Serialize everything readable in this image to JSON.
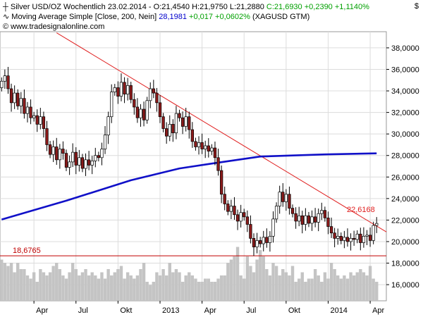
{
  "header": {
    "line1": {
      "legend_icon": "candlestick-icon",
      "name": "Silver USD/OZ Wochentlich",
      "date": "23.02.2014",
      "ohlc": "O:21,4540 H:21,9750 L:21,2880",
      "close": "C:21,6930",
      "change": "+0,2390 +1,1140%"
    },
    "line2": {
      "legend_icon": "wave-icon",
      "name": "Moving Average Simple [Close, 200, Nein]",
      "value": "28,1981",
      "change": "+0,017 +0,0602%",
      "ticker": "(XAGUSD GTM)"
    },
    "line3": {
      "legend_icon": "copyright-icon",
      "text": "www.tradesignalonline.com"
    },
    "currency": "$"
  },
  "colors": {
    "up_candle": "#ffffff",
    "down_candle": "#8b1a1a",
    "ma_line": "#1010c8",
    "trend_line": "#e02020",
    "support_line": "#c00000",
    "volume": "#c4c4c4",
    "grid": "#dcdcdc",
    "positive": "#00a000"
  },
  "chart_data": {
    "type": "candlestick",
    "y_axis": {
      "ticks": [
        "16,0000",
        "18,0000",
        "20,0000",
        "22,0000",
        "24,0000",
        "26,0000",
        "28,0000",
        "30,0000",
        "32,0000",
        "34,0000",
        "36,0000",
        "38,0000"
      ],
      "range": [
        14.5,
        39.5
      ]
    },
    "x_axis": {
      "ticks": [
        {
          "label": "Apr",
          "week": 10
        },
        {
          "label": "Jul",
          "week": 23
        },
        {
          "label": "Okt",
          "week": 36
        },
        {
          "label": "2013",
          "week": 49
        },
        {
          "label": "Apr",
          "week": 62
        },
        {
          "label": "Jul",
          "week": 75
        },
        {
          "label": "Okt",
          "week": 88
        },
        {
          "label": "2014",
          "week": 101
        },
        {
          "label": "Apr",
          "week": 114
        }
      ],
      "range": [
        -0.5,
        119
      ]
    },
    "closes": [
      34.9,
      35.4,
      34.2,
      32.9,
      33.8,
      32.6,
      33.3,
      31.9,
      32.5,
      31.5,
      31.7,
      30.9,
      31.6,
      30.5,
      29.0,
      28.1,
      28.8,
      27.6,
      28.6,
      28.2,
      26.9,
      27.4,
      28.3,
      27.1,
      27.8,
      26.8,
      27.6,
      27.1,
      27.5,
      28.0,
      27.8,
      28.6,
      29.9,
      31.6,
      33.9,
      34.3,
      33.5,
      34.8,
      33.7,
      34.5,
      33.2,
      32.5,
      31.5,
      32.3,
      31.3,
      33.1,
      34.2,
      33.8,
      32.9,
      31.6,
      30.5,
      29.8,
      30.9,
      30.1,
      31.9,
      31.5,
      30.7,
      31.6,
      30.4,
      29.3,
      28.8,
      29.2,
      28.6,
      28.9,
      28.4,
      28.7,
      27.8,
      26.6,
      24.4,
      23.5,
      22.8,
      23.3,
      22.5,
      21.9,
      22.7,
      22.3,
      21.6,
      20.3,
      19.5,
      20.1,
      19.8,
      20.4,
      19.9,
      20.5,
      22.1,
      23.3,
      24.6,
      23.7,
      24.4,
      23.1,
      22.6,
      21.9,
      22.4,
      21.6,
      22.4,
      21.7,
      22.3,
      21.8,
      22.6,
      22.9,
      22.2,
      21.4,
      20.8,
      20.3,
      20.5,
      20.1,
      20.4,
      20.0,
      20.3,
      20.2,
      20.7,
      19.9,
      20.5,
      20.6,
      20.1,
      21.5,
      21.69
    ],
    "moving_average": [
      {
        "week": 0,
        "value": 22.05
      },
      {
        "week": 20,
        "value": 23.8
      },
      {
        "week": 40,
        "value": 25.7
      },
      {
        "week": 55,
        "value": 26.8
      },
      {
        "week": 65,
        "value": 27.25
      },
      {
        "week": 80,
        "value": 27.9
      },
      {
        "week": 100,
        "value": 28.1
      },
      {
        "week": 116,
        "value": 28.2
      }
    ],
    "volume": [
      13,
      12,
      11,
      12,
      9,
      12,
      10,
      10,
      8,
      7,
      9,
      6,
      10,
      9,
      8,
      9,
      11,
      12,
      10,
      8,
      7,
      9,
      12,
      10,
      8,
      9,
      10,
      8,
      9,
      8,
      7,
      9,
      7,
      10,
      8,
      9,
      10,
      11,
      7,
      9,
      8,
      7,
      8,
      10,
      12,
      6,
      5,
      6,
      9,
      8,
      10,
      8,
      12,
      9,
      10,
      9,
      6,
      8,
      9,
      8,
      7,
      6,
      6,
      7,
      7,
      6,
      6,
      7,
      8,
      8,
      12,
      13,
      14,
      17,
      8,
      7,
      14,
      11,
      9,
      13,
      16,
      14,
      10,
      8,
      12,
      11,
      8,
      10,
      9,
      8,
      11,
      6,
      7,
      9,
      6,
      7,
      7,
      10,
      8,
      6,
      9,
      7,
      12,
      10,
      8,
      7,
      8,
      7,
      9,
      8,
      9,
      10,
      9,
      8,
      11,
      7,
      6
    ],
    "volume_max": 20,
    "trend_line": {
      "from": {
        "week": 17,
        "value": 39.4
      },
      "to": {
        "week": 119,
        "value": 20.9
      },
      "label": "22,6168"
    },
    "support_line": {
      "value": 18.6765,
      "label": "18,6765"
    }
  }
}
